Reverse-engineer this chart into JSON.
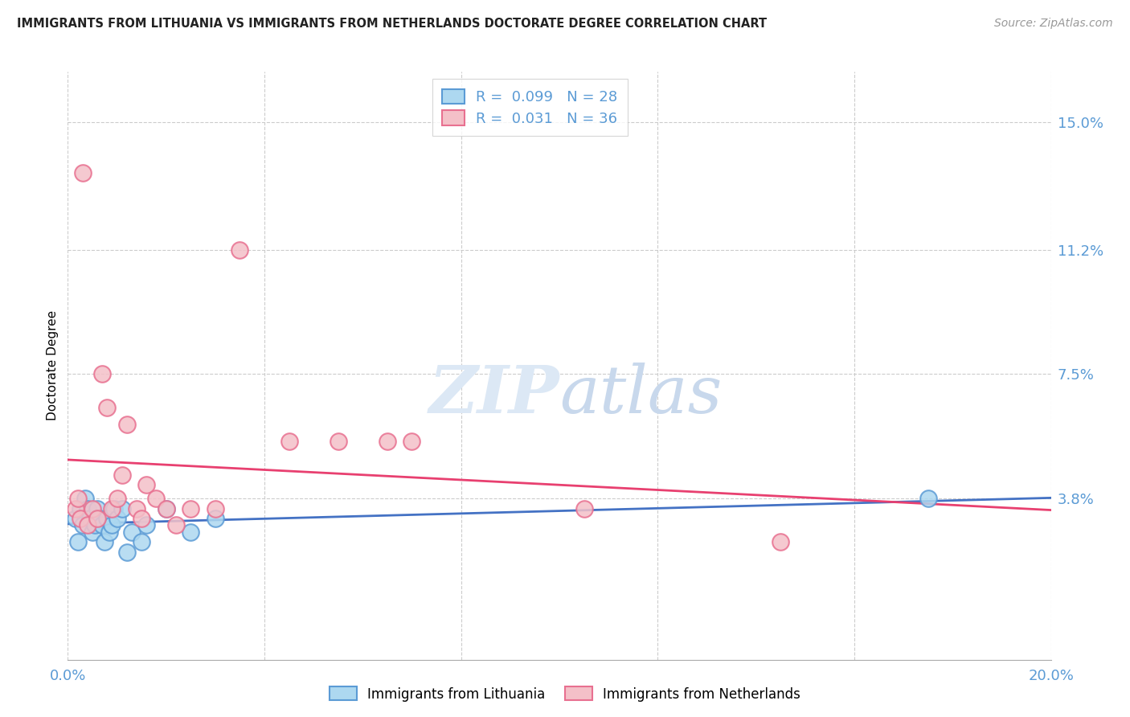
{
  "title": "IMMIGRANTS FROM LITHUANIA VS IMMIGRANTS FROM NETHERLANDS DOCTORATE DEGREE CORRELATION CHART",
  "source": "Source: ZipAtlas.com",
  "ylabel": "Doctorate Degree",
  "xlim": [
    0.0,
    20.0
  ],
  "ylim": [
    -1.0,
    16.5
  ],
  "yticks": [
    3.8,
    7.5,
    11.2,
    15.0
  ],
  "ytick_labels": [
    "3.8%",
    "7.5%",
    "11.2%",
    "15.0%"
  ],
  "xticks": [
    0.0,
    4.0,
    8.0,
    12.0,
    16.0,
    20.0
  ],
  "xtick_labels": [
    "0.0%",
    "",
    "",
    "",
    "",
    "20.0%"
  ],
  "color_blue": "#ADD8F0",
  "color_blue_dark": "#5B9BD5",
  "color_blue_line": "#4472C4",
  "color_pink": "#F4C0C8",
  "color_pink_dark": "#E87090",
  "color_pink_line": "#E84070",
  "color_axis_labels": "#5B9BD5",
  "watermark_color": "#DCE8F5",
  "lithuania_x": [
    0.15,
    0.2,
    0.25,
    0.3,
    0.35,
    0.4,
    0.45,
    0.5,
    0.55,
    0.6,
    0.65,
    0.7,
    0.75,
    0.8,
    0.85,
    0.9,
    0.95,
    1.0,
    1.1,
    1.2,
    1.3,
    1.5,
    1.6,
    2.0,
    2.5,
    3.0,
    17.5
  ],
  "lithuania_y": [
    3.2,
    2.5,
    3.5,
    3.0,
    3.8,
    3.5,
    3.2,
    2.8,
    3.0,
    3.5,
    3.2,
    3.0,
    2.5,
    3.2,
    2.8,
    3.0,
    3.5,
    3.2,
    3.5,
    2.2,
    2.8,
    2.5,
    3.0,
    3.5,
    2.8,
    3.2,
    3.8
  ],
  "netherlands_x": [
    0.15,
    0.2,
    0.25,
    0.3,
    0.4,
    0.5,
    0.6,
    0.7,
    0.8,
    0.9,
    1.0,
    1.1,
    1.2,
    1.4,
    1.5,
    1.6,
    1.8,
    2.0,
    2.2,
    2.5,
    3.0,
    3.5,
    4.5,
    5.5,
    6.5,
    7.0,
    10.5,
    14.5
  ],
  "netherlands_y": [
    3.5,
    3.8,
    3.2,
    13.5,
    3.0,
    3.5,
    3.2,
    7.5,
    6.5,
    3.5,
    3.8,
    4.5,
    6.0,
    3.5,
    3.2,
    4.2,
    3.8,
    3.5,
    3.0,
    3.5,
    3.5,
    11.2,
    5.5,
    5.5,
    5.5,
    5.5,
    3.5,
    2.5
  ]
}
